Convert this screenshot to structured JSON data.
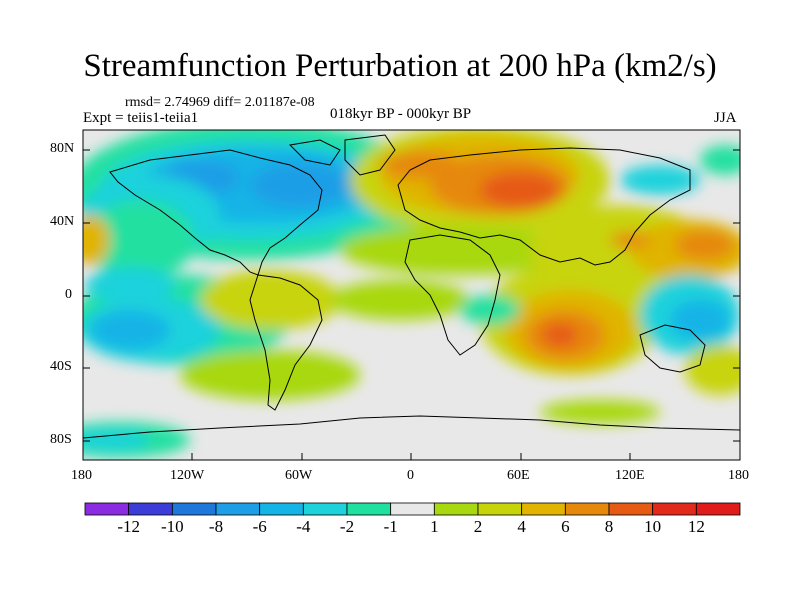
{
  "title": "Streamfunction Perturbation at 200 hPa (km2/s)",
  "stats": "rmsd= 2.74969 diff= 2.01187e-08",
  "experiment": "Expt = teiis1-teiia1",
  "period": "018kyr BP - 000kyr BP",
  "season": "JJA",
  "y_ticks": [
    "80N",
    "40N",
    "0",
    "40S",
    "80S"
  ],
  "x_ticks": [
    "180",
    "120W",
    "60W",
    "0",
    "60E",
    "120E",
    "180"
  ],
  "colorbar": {
    "labels": [
      "-12",
      "-10",
      "-8",
      "-6",
      "-4",
      "-2",
      "-1",
      "1",
      "2",
      "4",
      "6",
      "8",
      "10",
      "12"
    ],
    "colors": [
      "#8b2be2",
      "#3c3cd8",
      "#1e78dc",
      "#1e9ee6",
      "#14b4e6",
      "#1ed2dc",
      "#20e0a0",
      "#e8e8e8",
      "#a8d810",
      "#c8d40a",
      "#e0b400",
      "#e6880c",
      "#e65a14",
      "#e12a1c",
      "#e11a1a"
    ]
  }
}
